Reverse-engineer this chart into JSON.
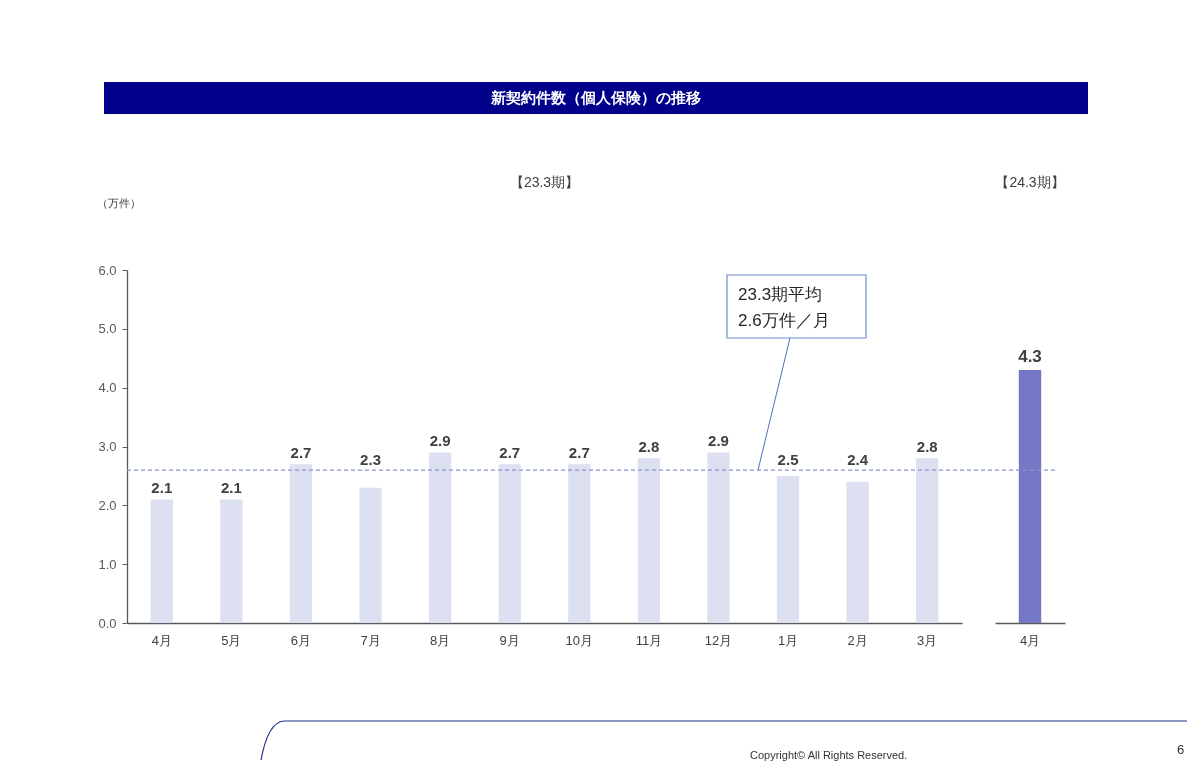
{
  "chart_data": [
    {
      "type": "bar",
      "title": "新契約件数（個人保険）の推移",
      "subtitle": "【23.3期】",
      "ylabel": "（万件）",
      "categories": [
        "4月",
        "5月",
        "6月",
        "7月",
        "8月",
        "9月",
        "10月",
        "11月",
        "12月",
        "1月",
        "2月",
        "3月"
      ],
      "values": [
        2.1,
        2.1,
        2.7,
        2.3,
        2.9,
        2.7,
        2.7,
        2.8,
        2.9,
        2.5,
        2.4,
        2.8
      ],
      "color": "#dde0f1",
      "ylim": [
        0,
        6
      ],
      "yticks": [
        {
          "value": 0,
          "label": "0.0"
        },
        {
          "value": 1,
          "label": "1.0"
        },
        {
          "value": 2,
          "label": "2.0"
        },
        {
          "value": 3,
          "label": "3.0"
        },
        {
          "value": 4,
          "label": "4.0"
        },
        {
          "value": 5,
          "label": "5.0"
        },
        {
          "value": 6,
          "label": "6.0"
        }
      ],
      "data_labels": true,
      "ref_lines": [
        {
          "axis": "y",
          "value": 2.6,
          "label": "23.3期平均\n2.6万件／月",
          "color": "#8596d0",
          "line_style": "dashed"
        }
      ],
      "annotations": [
        "Copyright© All Rights Reserved.",
        "6"
      ]
    },
    {
      "type": "bar",
      "subtitle": "【24.3期】",
      "categories": [
        "4月"
      ],
      "values": [
        4.3
      ],
      "color": "#7478c4",
      "ylim": [
        0,
        6
      ],
      "tick_labels": "x",
      "data_labels": true,
      "ref_lines": [
        {
          "axis": "y",
          "value": 2.6,
          "color": "#8596d0",
          "line_style": "dashed"
        }
      ]
    }
  ]
}
